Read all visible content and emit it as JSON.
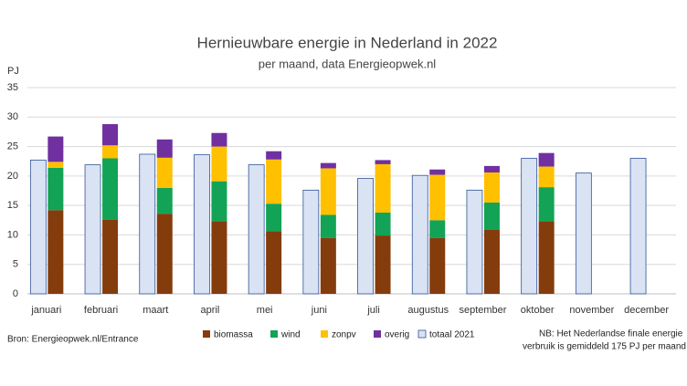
{
  "chart_data": {
    "type": "bar",
    "title": "Hernieuwbare energie in Nederland in 2022",
    "subtitle": "per maand, data Energieopwek.nl",
    "y_label": "PJ",
    "source": "Bron: Energieopwek.nl/Entrance",
    "note": [
      "NB: Het Nederlandse finale energie",
      "verbruik is gemiddeld 175 PJ per maand"
    ],
    "categories": [
      "januari",
      "februari",
      "maart",
      "april",
      "mei",
      "juni",
      "juli",
      "augustus",
      "september",
      "oktober",
      "november",
      "december"
    ],
    "series": [
      {
        "name": "biomassa",
        "color": "#843c0c",
        "values": [
          14.2,
          12.6,
          13.6,
          12.3,
          10.6,
          9.5,
          9.9,
          9.5,
          10.9,
          12.3,
          null,
          null
        ]
      },
      {
        "name": "wind",
        "color": "#13a356",
        "values": [
          7.2,
          10.4,
          4.4,
          6.8,
          4.7,
          3.9,
          3.9,
          3.0,
          4.6,
          5.8,
          null,
          null
        ]
      },
      {
        "name": "zonpv",
        "color": "#ffc000",
        "values": [
          1.0,
          2.2,
          5.1,
          5.9,
          7.5,
          7.9,
          8.2,
          7.7,
          5.1,
          3.5,
          null,
          null
        ]
      },
      {
        "name": "overig",
        "color": "#7030a0",
        "values": [
          4.3,
          3.6,
          3.1,
          2.3,
          1.4,
          0.9,
          0.7,
          0.9,
          1.1,
          2.3,
          null,
          null
        ]
      }
    ],
    "comparison_series": {
      "name": "totaal 2021",
      "color": "#dae3f3",
      "edge_color": "#2f5597",
      "values": [
        22.7,
        21.9,
        23.7,
        23.6,
        21.9,
        17.6,
        19.6,
        20.1,
        17.6,
        23.0,
        20.5,
        23.0
      ]
    },
    "ylim": [
      0,
      35
    ],
    "yticks": [
      0,
      5,
      10,
      15,
      20,
      25,
      30,
      35
    ],
    "grid": true
  }
}
